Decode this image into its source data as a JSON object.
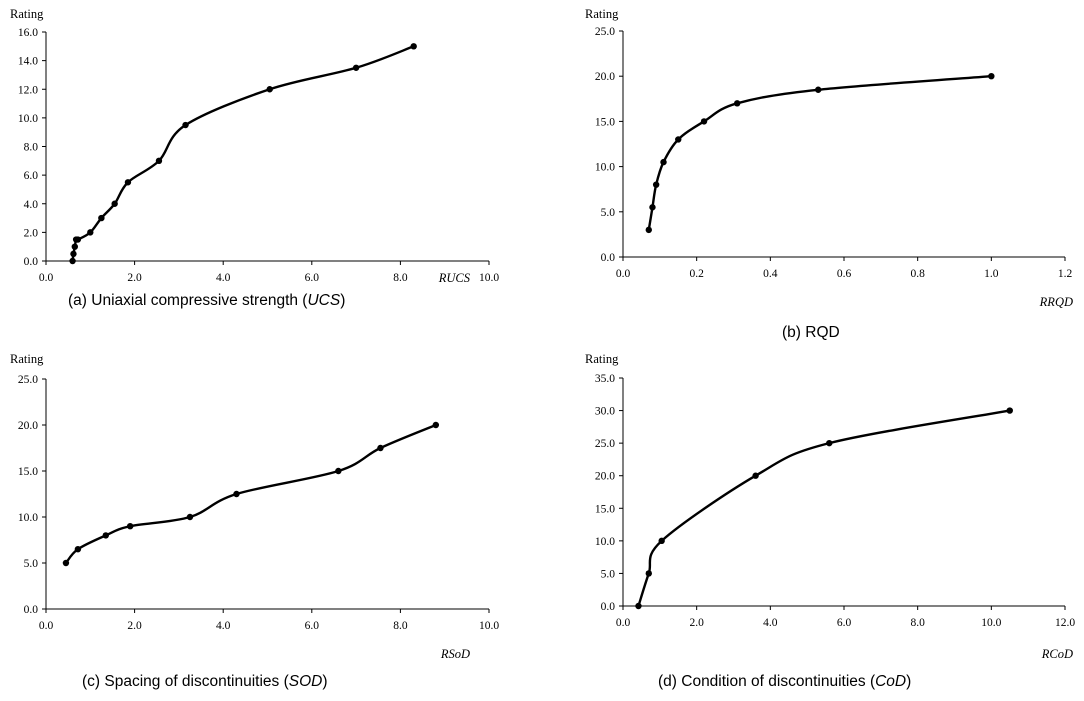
{
  "chart_data": [
    {
      "type": "line",
      "ylabel": "Rating",
      "xlabel": "RUCS",
      "caption": {
        "pre": "(a)  Uniaxial  compressive  strength  (",
        "it": "UCS",
        "post": ")"
      },
      "xlim": [
        0,
        10
      ],
      "xticks": [
        "0.0",
        "2.0",
        "4.0",
        "6.0",
        "8.0",
        "10.0"
      ],
      "ylim": [
        0,
        16
      ],
      "yticks": [
        "0.0",
        "2.0",
        "4.0",
        "6.0",
        "8.0",
        "10.0",
        "12.0",
        "14.0",
        "16.0"
      ],
      "series": [
        {
          "x": [
            0.6,
            0.62,
            0.65,
            0.68,
            0.72,
            1.0,
            1.25,
            1.55,
            1.85,
            2.55,
            3.15,
            5.05,
            7.0,
            8.3
          ],
          "y": [
            0,
            0.5,
            1.0,
            1.5,
            1.5,
            2.0,
            3.0,
            4.0,
            5.5,
            7.0,
            9.5,
            12.0,
            13.5,
            15.0
          ]
        }
      ]
    },
    {
      "type": "line",
      "ylabel": "Rating",
      "xlabel": "RRQD",
      "caption": {
        "pre": "(b)  RQD",
        "it": "",
        "post": ""
      },
      "xlim": [
        0,
        1.2
      ],
      "xticks": [
        "0.0",
        "0.2",
        "0.4",
        "0.6",
        "0.8",
        "1.0",
        "1.2"
      ],
      "ylim": [
        0,
        25
      ],
      "yticks": [
        "0.0",
        "5.0",
        "10.0",
        "15.0",
        "20.0",
        "25.0"
      ],
      "series": [
        {
          "x": [
            0.07,
            0.08,
            0.09,
            0.11,
            0.15,
            0.22,
            0.31,
            0.53,
            1.0
          ],
          "y": [
            3.0,
            5.5,
            8.0,
            10.5,
            13.0,
            15.0,
            17.0,
            18.5,
            20.0
          ]
        }
      ]
    },
    {
      "type": "line",
      "ylabel": "Rating",
      "xlabel": "RSoD",
      "caption": {
        "pre": "(c)  Spacing  of  discontinuities  (",
        "it": "SOD",
        "post": ")"
      },
      "xlim": [
        0,
        10
      ],
      "xticks": [
        "0.0",
        "2.0",
        "4.0",
        "6.0",
        "8.0",
        "10.0"
      ],
      "ylim": [
        0,
        25
      ],
      "yticks": [
        "0.0",
        "5.0",
        "10.0",
        "15.0",
        "20.0",
        "25.0"
      ],
      "series": [
        {
          "x": [
            0.45,
            0.72,
            1.35,
            1.9,
            3.25,
            4.3,
            6.6,
            7.55,
            8.8
          ],
          "y": [
            5.0,
            6.5,
            8.0,
            9.0,
            10.0,
            12.5,
            15.0,
            17.5,
            20.0
          ]
        }
      ]
    },
    {
      "type": "line",
      "ylabel": "Rating",
      "xlabel": "RCoD",
      "caption": {
        "pre": "(d)  Condition  of  discontinuities  (",
        "it": "CoD",
        "post": ")"
      },
      "xlim": [
        0,
        12
      ],
      "xticks": [
        "0.0",
        "2.0",
        "4.0",
        "6.0",
        "8.0",
        "10.0",
        "12.0"
      ],
      "ylim": [
        0,
        35
      ],
      "yticks": [
        "0.0",
        "5.0",
        "10.0",
        "15.0",
        "20.0",
        "25.0",
        "30.0",
        "35.0"
      ],
      "series": [
        {
          "x": [
            0.42,
            0.7,
            1.05,
            3.6,
            5.6,
            10.5
          ],
          "y": [
            0,
            5.0,
            10.0,
            20.0,
            25.0,
            30.0
          ]
        }
      ]
    }
  ]
}
